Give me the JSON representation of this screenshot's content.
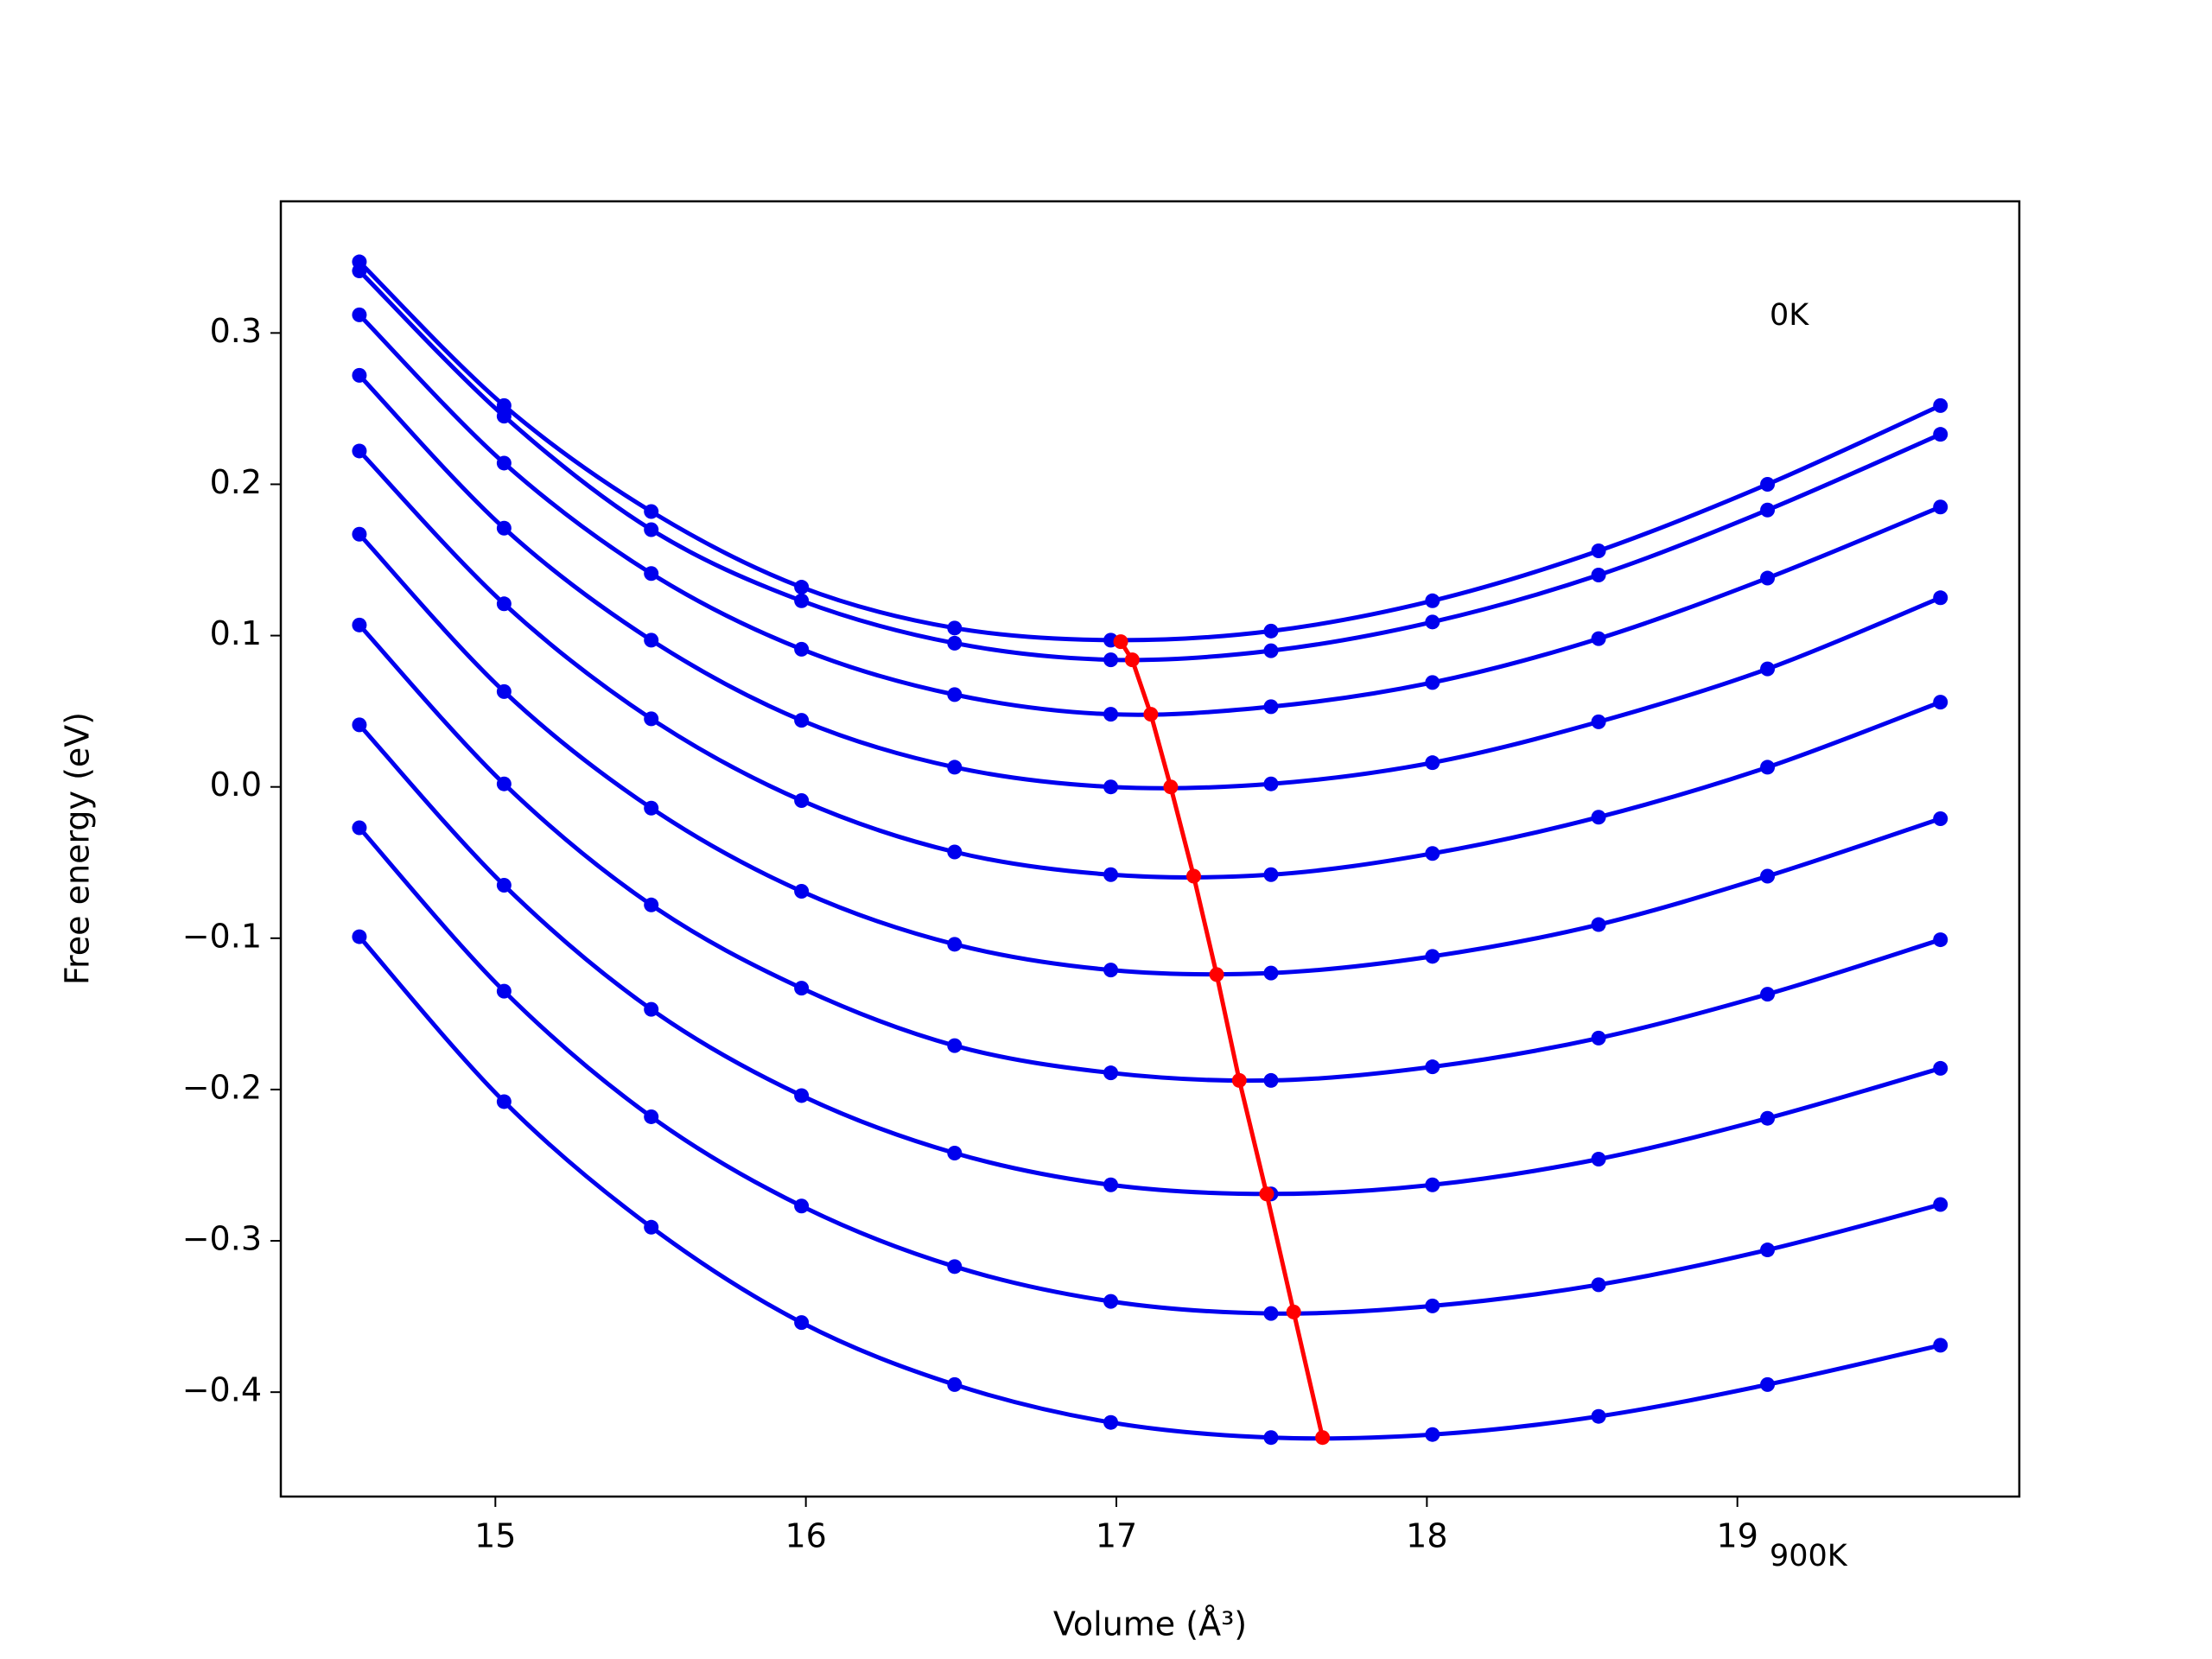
{
  "chart_data": {
    "type": "line",
    "xlabel": "Volume (Å³)",
    "ylabel": "Free energy (eV)",
    "x": [
      14.562,
      15.028,
      15.502,
      15.986,
      16.479,
      16.982,
      17.498,
      18.018,
      18.553,
      19.097,
      19.654
    ],
    "series": [
      {
        "color": "#0000ee",
        "values": [
          0.347,
          0.252,
          0.182,
          0.132,
          0.105,
          0.097,
          0.103,
          0.123,
          0.156,
          0.2,
          0.252
        ]
      },
      {
        "color": "#0000ee",
        "values": [
          0.341,
          0.245,
          0.17,
          0.123,
          0.095,
          0.084,
          0.09,
          0.109,
          0.14,
          0.183,
          0.233
        ]
      },
      {
        "color": "#0000ee",
        "values": [
          0.312,
          0.214,
          0.141,
          0.091,
          0.061,
          0.048,
          0.053,
          0.069,
          0.098,
          0.138,
          0.185
        ]
      },
      {
        "color": "#0000ee",
        "values": [
          0.272,
          0.171,
          0.097,
          0.044,
          0.013,
          0.0,
          0.002,
          0.016,
          0.043,
          0.078,
          0.125
        ]
      },
      {
        "color": "#0000ee",
        "values": [
          0.222,
          0.121,
          0.045,
          -0.009,
          -0.043,
          -0.058,
          -0.058,
          -0.044,
          -0.02,
          0.013,
          0.056
        ]
      },
      {
        "color": "#0000ee",
        "values": [
          0.167,
          0.063,
          -0.014,
          -0.069,
          -0.104,
          -0.121,
          -0.123,
          -0.112,
          -0.091,
          -0.059,
          -0.021
        ]
      },
      {
        "color": "#0000ee",
        "values": [
          0.107,
          0.002,
          -0.078,
          -0.133,
          -0.171,
          -0.189,
          -0.194,
          -0.185,
          -0.166,
          -0.137,
          -0.101
        ]
      },
      {
        "color": "#0000ee",
        "values": [
          0.041,
          -0.065,
          -0.147,
          -0.204,
          -0.242,
          -0.263,
          -0.269,
          -0.263,
          -0.246,
          -0.219,
          -0.186
        ]
      },
      {
        "color": "#0000ee",
        "values": [
          -0.027,
          -0.135,
          -0.218,
          -0.277,
          -0.317,
          -0.34,
          -0.348,
          -0.343,
          -0.329,
          -0.306,
          -0.276
        ]
      },
      {
        "color": "#0000ee",
        "values": [
          -0.099,
          -0.208,
          -0.291,
          -0.354,
          -0.395,
          -0.42,
          -0.43,
          -0.428,
          -0.416,
          -0.395,
          -0.369
        ]
      },
      {
        "color": "#ff0000",
        "smooth": false,
        "x": [
          17.014,
          17.051,
          17.111,
          17.175,
          17.249,
          17.323,
          17.396,
          17.484,
          17.571,
          17.664
        ],
        "values": [
          0.096,
          0.084,
          0.048,
          0.0,
          -0.059,
          -0.124,
          -0.194,
          -0.269,
          -0.347,
          -0.43
        ]
      }
    ],
    "annotations": [
      "0K",
      "900K"
    ],
    "xlim": [
      14.309,
      19.908
    ],
    "xticks": [
      15,
      16,
      17,
      18,
      19
    ],
    "ylim": [
      -0.469,
      0.387
    ],
    "yticks": [
      {
        "value": -0.4,
        "label": "−0.4"
      },
      {
        "value": -0.3,
        "label": "−0.3"
      },
      {
        "value": -0.2,
        "label": "−0.2"
      },
      {
        "value": -0.1,
        "label": "−0.1"
      },
      {
        "value": 0,
        "label": "0.0"
      },
      0.1,
      0.2,
      0.3
    ],
    "grid": false
  }
}
